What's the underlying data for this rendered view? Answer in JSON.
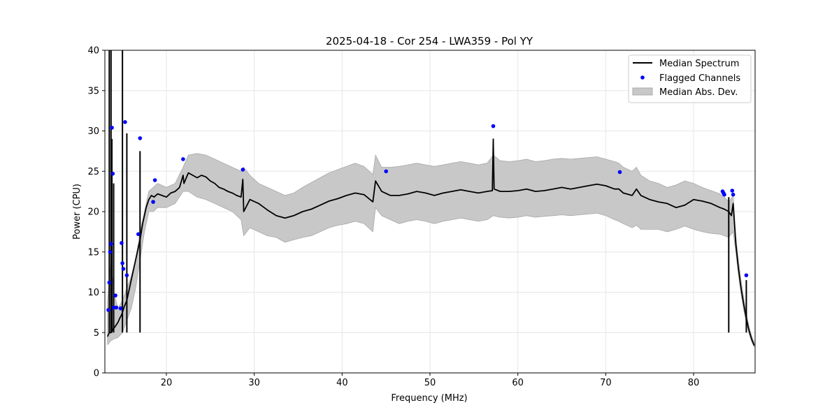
{
  "chart_data": {
    "type": "line",
    "title": "2025-04-18 - Cor 254 - LWA359 - Pol YY",
    "xlabel": "Frequency (MHz)",
    "ylabel": "Power (CPU)",
    "xlim": [
      13,
      87
    ],
    "ylim": [
      0,
      40
    ],
    "xticks": [
      20,
      30,
      40,
      50,
      60,
      70,
      80
    ],
    "yticks": [
      0,
      5,
      10,
      15,
      20,
      25,
      30,
      35,
      40
    ],
    "grid": true,
    "legend_position": "top-right",
    "series": [
      {
        "name": "Median Spectrum",
        "kind": "line",
        "color": "#000000",
        "x": [
          13.3,
          13.5,
          13.7,
          13.8,
          13.9,
          14.0,
          14.2,
          14.5,
          14.7,
          14.9,
          15.0,
          15.2,
          15.5,
          15.8,
          16.2,
          16.6,
          17.0,
          17.3,
          17.7,
          18.0,
          18.3,
          18.6,
          19.0,
          19.5,
          20.0,
          20.5,
          21.0,
          21.5,
          21.9,
          22.0,
          22.5,
          23.0,
          23.5,
          24.0,
          24.5,
          25.0,
          25.5,
          26.0,
          26.5,
          27.0,
          27.5,
          28.0,
          28.5,
          28.7,
          28.8,
          29.5,
          30.5,
          31.5,
          32.5,
          33.5,
          34.5,
          35.5,
          36.5,
          37.5,
          38.5,
          39.5,
          40.5,
          41.5,
          42.5,
          43.5,
          43.8,
          44.5,
          45.5,
          46.5,
          47.5,
          48.5,
          49.5,
          50.5,
          51.5,
          52.5,
          53.5,
          54.5,
          55.5,
          56.5,
          57.1,
          57.2,
          57.3,
          58.0,
          59.0,
          60.0,
          61.0,
          62.0,
          63.0,
          64.0,
          65.0,
          66.0,
          67.0,
          68.0,
          69.0,
          70.0,
          71.0,
          71.5,
          72.0,
          73.0,
          73.5,
          74.0,
          75.0,
          76.0,
          77.0,
          78.0,
          79.0,
          80.0,
          81.0,
          82.0,
          83.0,
          83.5,
          84.0,
          84.3,
          84.5,
          84.8,
          85.1,
          85.4,
          85.7,
          86.0,
          86.3,
          86.6,
          86.9
        ],
        "y": [
          4.5,
          5.0,
          5.0,
          5.2,
          5.4,
          5.5,
          5.8,
          6.3,
          6.8,
          7.2,
          7.5,
          8.2,
          9.0,
          10.5,
          12.5,
          14.5,
          16.5,
          18.5,
          20.5,
          21.5,
          22.0,
          21.8,
          22.2,
          22.0,
          21.8,
          22.3,
          22.5,
          23.0,
          24.5,
          23.5,
          24.8,
          24.5,
          24.2,
          24.5,
          24.3,
          23.8,
          23.5,
          23.0,
          22.8,
          22.5,
          22.3,
          22.0,
          21.8,
          24.0,
          20.0,
          21.5,
          21.0,
          20.2,
          19.5,
          19.2,
          19.5,
          20.0,
          20.3,
          20.8,
          21.3,
          21.6,
          22.0,
          22.3,
          22.1,
          21.2,
          23.8,
          22.5,
          22.0,
          22.0,
          22.2,
          22.5,
          22.3,
          22.0,
          22.3,
          22.5,
          22.7,
          22.5,
          22.3,
          22.5,
          22.6,
          29.0,
          22.8,
          22.5,
          22.5,
          22.6,
          22.8,
          22.5,
          22.6,
          22.8,
          23.0,
          22.8,
          23.0,
          23.2,
          23.4,
          23.2,
          22.8,
          22.8,
          22.3,
          22.0,
          22.8,
          22.0,
          21.5,
          21.2,
          21.0,
          20.5,
          20.8,
          21.5,
          21.3,
          21.0,
          20.5,
          20.3,
          20.0,
          19.5,
          21.0,
          16.0,
          13.0,
          10.5,
          8.5,
          6.8,
          5.3,
          4.2,
          3.4
        ]
      },
      {
        "name": "Flagged Channels",
        "kind": "scatter",
        "color": "#0000ff",
        "x": [
          13.4,
          13.5,
          13.6,
          13.7,
          13.8,
          13.9,
          14.0,
          14.2,
          14.3,
          14.8,
          14.9,
          15.0,
          15.1,
          15.3,
          15.5,
          16.8,
          17.0,
          18.5,
          18.7,
          21.9,
          28.7,
          45.0,
          57.2,
          71.6,
          83.3,
          83.4,
          83.5,
          84.4,
          84.5,
          86.0
        ],
        "y": [
          7.8,
          11.2,
          15.0,
          16.0,
          30.4,
          24.7,
          8.1,
          9.6,
          8.1,
          8.0,
          16.1,
          13.6,
          12.9,
          31.1,
          12.1,
          17.2,
          29.1,
          21.2,
          23.9,
          26.5,
          25.2,
          25.0,
          30.6,
          24.9,
          22.5,
          22.3,
          22.1,
          22.6,
          22.1,
          12.1
        ]
      },
      {
        "name": "Median Abs. Dev.",
        "kind": "area",
        "color": "#c8c8c8",
        "x": [
          13.3,
          13.7,
          14.0,
          14.5,
          15.0,
          15.5,
          16.0,
          16.5,
          17.0,
          17.5,
          18.0,
          18.5,
          19.0,
          20.0,
          21.0,
          21.9,
          22.5,
          23.5,
          24.5,
          25.5,
          26.5,
          27.5,
          28.5,
          28.8,
          29.5,
          30.5,
          31.5,
          32.5,
          33.5,
          34.5,
          35.5,
          36.5,
          37.5,
          38.5,
          39.5,
          40.5,
          41.5,
          42.5,
          43.5,
          43.8,
          44.5,
          45.5,
          46.5,
          47.5,
          48.5,
          49.5,
          50.5,
          51.5,
          52.5,
          53.5,
          54.5,
          55.5,
          56.5,
          57.2,
          58.0,
          59.0,
          60.0,
          61.0,
          62.0,
          63.0,
          64.0,
          65.0,
          66.0,
          67.0,
          68.0,
          69.0,
          70.0,
          71.0,
          71.5,
          72.0,
          73.0,
          73.5,
          74.0,
          75.0,
          76.0,
          77.0,
          78.0,
          79.0,
          80.0,
          81.0,
          82.0,
          83.0,
          83.5,
          84.0,
          84.5,
          84.8,
          85.1,
          85.4,
          85.7,
          86.0,
          86.3,
          86.6,
          86.9
        ],
        "upper": [
          9.0,
          14.0,
          10.0,
          8.0,
          9.0,
          10.5,
          12.0,
          14.0,
          17.5,
          20.0,
          22.5,
          23.0,
          23.5,
          23.0,
          23.5,
          25.5,
          27.0,
          27.2,
          27.0,
          26.5,
          26.0,
          25.5,
          25.0,
          25.5,
          24.5,
          23.5,
          23.0,
          22.5,
          22.0,
          22.3,
          23.0,
          23.6,
          24.2,
          24.8,
          25.2,
          25.6,
          26.0,
          25.6,
          24.6,
          27.0,
          25.5,
          25.5,
          25.6,
          25.8,
          26.0,
          25.8,
          25.6,
          25.8,
          26.0,
          26.2,
          26.0,
          25.8,
          26.0,
          27.0,
          26.3,
          26.2,
          26.3,
          26.5,
          26.2,
          26.3,
          26.5,
          26.6,
          26.5,
          26.6,
          26.7,
          26.8,
          26.5,
          26.2,
          26.0,
          25.5,
          25.0,
          25.5,
          24.5,
          23.8,
          23.5,
          23.0,
          23.3,
          23.8,
          23.5,
          23.0,
          22.6,
          22.2,
          21.8,
          21.2,
          22.0,
          17.0,
          14.0,
          11.5,
          9.3,
          7.4,
          5.8,
          4.6,
          3.8
        ],
        "lower": [
          3.5,
          4.0,
          4.2,
          4.4,
          5.0,
          6.5,
          8.0,
          10.5,
          14.0,
          17.5,
          20.0,
          20.0,
          20.5,
          20.5,
          21.0,
          22.5,
          22.5,
          21.8,
          21.5,
          21.0,
          20.5,
          20.0,
          19.0,
          17.0,
          18.0,
          17.5,
          17.0,
          16.8,
          16.2,
          16.5,
          16.8,
          17.0,
          17.5,
          18.0,
          18.3,
          18.5,
          18.8,
          18.5,
          17.5,
          20.5,
          19.5,
          19.0,
          18.5,
          18.8,
          19.0,
          18.8,
          18.5,
          18.8,
          19.0,
          19.2,
          19.0,
          18.8,
          19.0,
          19.5,
          19.3,
          19.2,
          19.3,
          19.5,
          19.3,
          19.4,
          19.5,
          19.6,
          19.5,
          19.6,
          19.7,
          19.8,
          19.5,
          19.0,
          18.8,
          18.5,
          18.0,
          18.3,
          17.8,
          17.8,
          17.8,
          17.5,
          17.8,
          18.2,
          17.8,
          17.5,
          17.3,
          17.2,
          17.0,
          16.8,
          17.5,
          15.0,
          12.2,
          9.8,
          7.8,
          6.2,
          4.9,
          3.9,
          3.2
        ]
      }
    ],
    "spikes": [
      {
        "x": 13.5,
        "y": 40.0
      },
      {
        "x": 13.7,
        "y": 40.0
      },
      {
        "x": 13.8,
        "y": 29.0
      },
      {
        "x": 14.0,
        "y": 23.5
      },
      {
        "x": 15.0,
        "y": 40.0
      },
      {
        "x": 15.5,
        "y": 29.7
      },
      {
        "x": 17.0,
        "y": 27.5
      },
      {
        "x": 84.0,
        "y": 21.8
      },
      {
        "x": 86.0,
        "y": 11.5
      }
    ]
  }
}
